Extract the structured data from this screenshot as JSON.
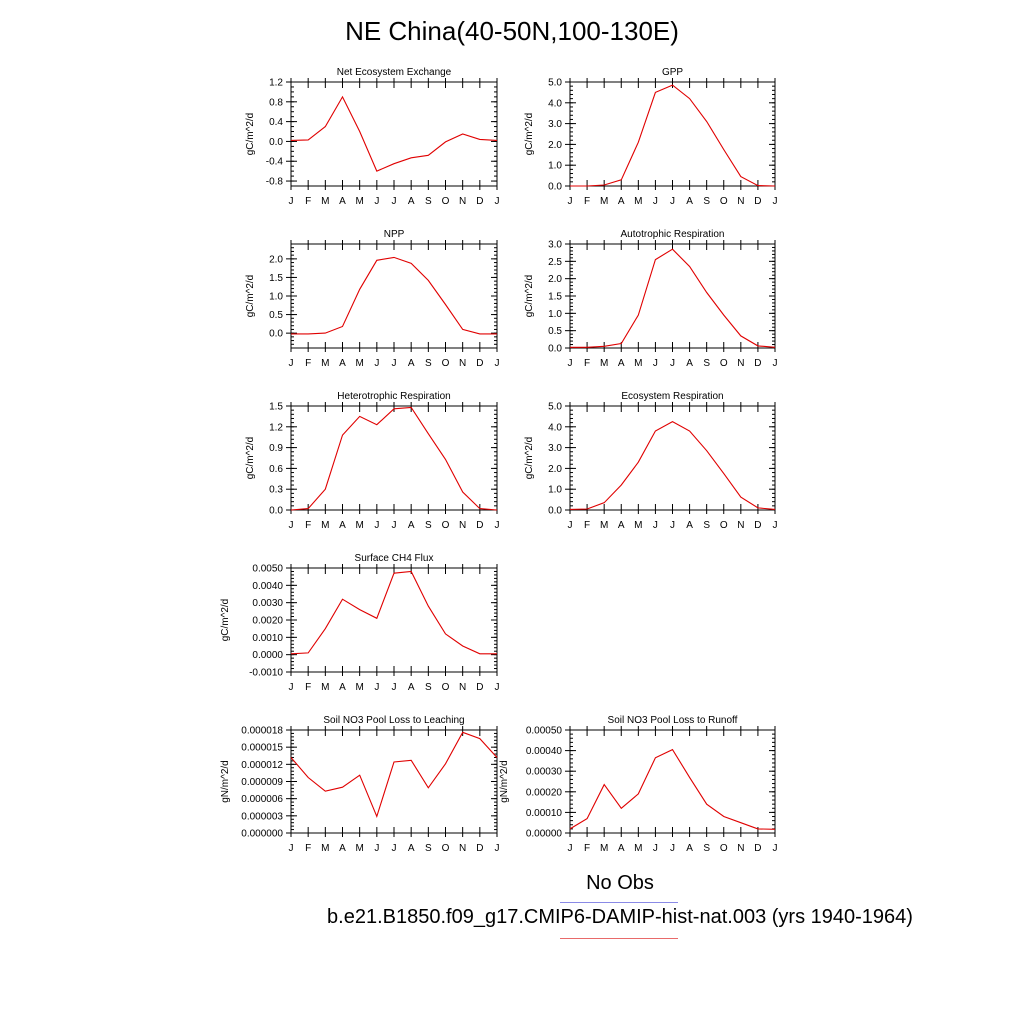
{
  "title": "NE China(40-50N,100-130E)",
  "legend": {
    "obs_label": "No Obs",
    "case_label": "b.e21.B1850.f09_g17.CMIP6-DAMIP-hist-nat.003 (yrs 1940-1964)"
  },
  "colors": {
    "series": "#e00000",
    "axis": "#000000"
  },
  "chart_data": [
    {
      "type": "line",
      "title": "Net Ecosystem Exchange",
      "ylabel": "gC/m^2/d",
      "categories": [
        "J",
        "F",
        "M",
        "A",
        "M",
        "J",
        "J",
        "A",
        "S",
        "O",
        "N",
        "D",
        "J"
      ],
      "ylim": [
        -0.9,
        1.2
      ],
      "yticks": [
        {
          "v": 1.2,
          "t": "1.2"
        },
        {
          "v": 0.8,
          "t": "0.8"
        },
        {
          "v": 0.4,
          "t": "0.4"
        },
        {
          "v": 0.0,
          "t": "0.0"
        },
        {
          "v": -0.4,
          "t": "-0.4"
        },
        {
          "v": -0.8,
          "t": "-0.8"
        }
      ],
      "minor_step": 0.1,
      "values": [
        0.02,
        0.03,
        0.3,
        0.9,
        0.2,
        -0.6,
        -0.45,
        -0.33,
        -0.28,
        -0.01,
        0.15,
        0.04,
        0.02
      ]
    },
    {
      "type": "line",
      "title": "GPP",
      "ylabel": "gC/m^2/d",
      "categories": [
        "J",
        "F",
        "M",
        "A",
        "M",
        "J",
        "J",
        "A",
        "S",
        "O",
        "N",
        "D",
        "J"
      ],
      "ylim": [
        0,
        5.0
      ],
      "yticks": [
        {
          "v": 5,
          "t": "5.0"
        },
        {
          "v": 4,
          "t": "4.0"
        },
        {
          "v": 3,
          "t": "3.0"
        },
        {
          "v": 2,
          "t": "2.0"
        },
        {
          "v": 1,
          "t": "1.0"
        },
        {
          "v": 0,
          "t": "0.0"
        }
      ],
      "minor_step": 0.2,
      "values": [
        0.0,
        0.0,
        0.05,
        0.3,
        2.1,
        4.5,
        4.85,
        4.2,
        3.1,
        1.75,
        0.45,
        0.02,
        0.0
      ]
    },
    {
      "type": "line",
      "title": "NPP",
      "ylabel": "gC/m^2/d",
      "categories": [
        "J",
        "F",
        "M",
        "A",
        "M",
        "J",
        "J",
        "A",
        "S",
        "O",
        "N",
        "D",
        "J"
      ],
      "ylim": [
        -0.4,
        2.4
      ],
      "yticks": [
        {
          "v": 2.0,
          "t": "2.0"
        },
        {
          "v": 1.5,
          "t": "1.5"
        },
        {
          "v": 1.0,
          "t": "1.0"
        },
        {
          "v": 0.5,
          "t": "0.5"
        },
        {
          "v": 0.0,
          "t": "0.0"
        }
      ],
      "minor_step": 0.1,
      "values": [
        -0.02,
        -0.02,
        0.0,
        0.18,
        1.18,
        1.96,
        2.04,
        1.88,
        1.42,
        0.77,
        0.1,
        -0.02,
        -0.02
      ]
    },
    {
      "type": "line",
      "title": "Autotrophic Respiration",
      "ylabel": "gC/m^2/d",
      "categories": [
        "J",
        "F",
        "M",
        "A",
        "M",
        "J",
        "J",
        "A",
        "S",
        "O",
        "N",
        "D",
        "J"
      ],
      "ylim": [
        0,
        3.0
      ],
      "yticks": [
        {
          "v": 3.0,
          "t": "3.0"
        },
        {
          "v": 2.5,
          "t": "2.5"
        },
        {
          "v": 2.0,
          "t": "2.0"
        },
        {
          "v": 1.5,
          "t": "1.5"
        },
        {
          "v": 1.0,
          "t": "1.0"
        },
        {
          "v": 0.5,
          "t": "0.5"
        },
        {
          "v": 0.0,
          "t": "0.0"
        }
      ],
      "minor_step": 0.1,
      "values": [
        0.02,
        0.02,
        0.05,
        0.13,
        0.95,
        2.55,
        2.85,
        2.35,
        1.6,
        0.95,
        0.35,
        0.06,
        0.02
      ]
    },
    {
      "type": "line",
      "title": "Heterotrophic Respiration",
      "ylabel": "gC/m^2/d",
      "categories": [
        "J",
        "F",
        "M",
        "A",
        "M",
        "J",
        "J",
        "A",
        "S",
        "O",
        "N",
        "D",
        "J"
      ],
      "ylim": [
        0,
        1.5
      ],
      "yticks": [
        {
          "v": 1.5,
          "t": "1.5"
        },
        {
          "v": 1.2,
          "t": "1.2"
        },
        {
          "v": 0.9,
          "t": "0.9"
        },
        {
          "v": 0.6,
          "t": "0.6"
        },
        {
          "v": 0.3,
          "t": "0.3"
        },
        {
          "v": 0.0,
          "t": "0.0"
        }
      ],
      "minor_step": 0.06,
      "values": [
        0.0,
        0.02,
        0.3,
        1.08,
        1.35,
        1.23,
        1.46,
        1.48,
        1.1,
        0.73,
        0.26,
        0.02,
        0.0
      ]
    },
    {
      "type": "line",
      "title": "Ecosystem Respiration",
      "ylabel": "gC/m^2/d",
      "categories": [
        "J",
        "F",
        "M",
        "A",
        "M",
        "J",
        "J",
        "A",
        "S",
        "O",
        "N",
        "D",
        "J"
      ],
      "ylim": [
        0,
        5.0
      ],
      "yticks": [
        {
          "v": 5,
          "t": "5.0"
        },
        {
          "v": 4,
          "t": "4.0"
        },
        {
          "v": 3,
          "t": "3.0"
        },
        {
          "v": 2,
          "t": "2.0"
        },
        {
          "v": 1,
          "t": "1.0"
        },
        {
          "v": 0,
          "t": "0.0"
        }
      ],
      "minor_step": 0.2,
      "values": [
        0.03,
        0.05,
        0.35,
        1.2,
        2.3,
        3.8,
        4.25,
        3.8,
        2.85,
        1.75,
        0.62,
        0.1,
        0.03
      ]
    },
    {
      "type": "line",
      "title": "Surface CH4 Flux",
      "ylabel": "gC/m^2/d",
      "categories": [
        "J",
        "F",
        "M",
        "A",
        "M",
        "J",
        "J",
        "A",
        "S",
        "O",
        "N",
        "D",
        "J"
      ],
      "ylim": [
        -0.001,
        0.005
      ],
      "yticks": [
        {
          "v": 0.005,
          "t": "0.0050"
        },
        {
          "v": 0.004,
          "t": "0.0040"
        },
        {
          "v": 0.003,
          "t": "0.0030"
        },
        {
          "v": 0.002,
          "t": "0.0020"
        },
        {
          "v": 0.001,
          "t": "0.0010"
        },
        {
          "v": 0.0,
          "t": "0.0000"
        },
        {
          "v": -0.001,
          "t": "-0.0010"
        }
      ],
      "minor_step": 0.0002,
      "values": [
        5e-05,
        0.0001,
        0.0015,
        0.0032,
        0.0026,
        0.0021,
        0.0047,
        0.0048,
        0.0028,
        0.0012,
        0.0005,
        5e-05,
        5e-05
      ]
    },
    {
      "type": "line",
      "title": "Soil NO3 Pool Loss to Leaching",
      "ylabel": "gN/m^2/d",
      "categories": [
        "J",
        "F",
        "M",
        "A",
        "M",
        "J",
        "J",
        "A",
        "S",
        "O",
        "N",
        "D",
        "J"
      ],
      "ylim": [
        0,
        1.8e-05
      ],
      "yticks": [
        {
          "v": 1.8e-05,
          "t": "0.000018"
        },
        {
          "v": 1.5e-05,
          "t": "0.000015"
        },
        {
          "v": 1.2e-05,
          "t": "0.000012"
        },
        {
          "v": 9e-06,
          "t": "0.000009"
        },
        {
          "v": 6e-06,
          "t": "0.000006"
        },
        {
          "v": 3e-06,
          "t": "0.000003"
        },
        {
          "v": 0.0,
          "t": "0.000000"
        }
      ],
      "minor_step": 6e-07,
      "values": [
        1.32e-05,
        9.7e-06,
        7.3e-06,
        8e-06,
        1.01e-05,
        2.9e-06,
        1.24e-05,
        1.27e-05,
        7.9e-06,
        1.21e-05,
        1.76e-05,
        1.65e-05,
        1.32e-05
      ]
    },
    {
      "type": "line",
      "title": "Soil NO3 Pool Loss to Runoff",
      "ylabel": "gN/m^2/d",
      "categories": [
        "J",
        "F",
        "M",
        "A",
        "M",
        "J",
        "J",
        "A",
        "S",
        "O",
        "N",
        "D",
        "J"
      ],
      "ylim": [
        0,
        0.0005
      ],
      "yticks": [
        {
          "v": 0.0005,
          "t": "0.00050"
        },
        {
          "v": 0.0004,
          "t": "0.00040"
        },
        {
          "v": 0.0003,
          "t": "0.00030"
        },
        {
          "v": 0.0002,
          "t": "0.00020"
        },
        {
          "v": 0.0001,
          "t": "0.00010"
        },
        {
          "v": 0.0,
          "t": "0.00000"
        }
      ],
      "minor_step": 2e-05,
      "values": [
        2e-05,
        7e-05,
        0.000235,
        0.00012,
        0.00019,
        0.000365,
        0.000405,
        0.00027,
        0.00014,
        8e-05,
        5e-05,
        2e-05,
        1.8e-05
      ]
    }
  ]
}
